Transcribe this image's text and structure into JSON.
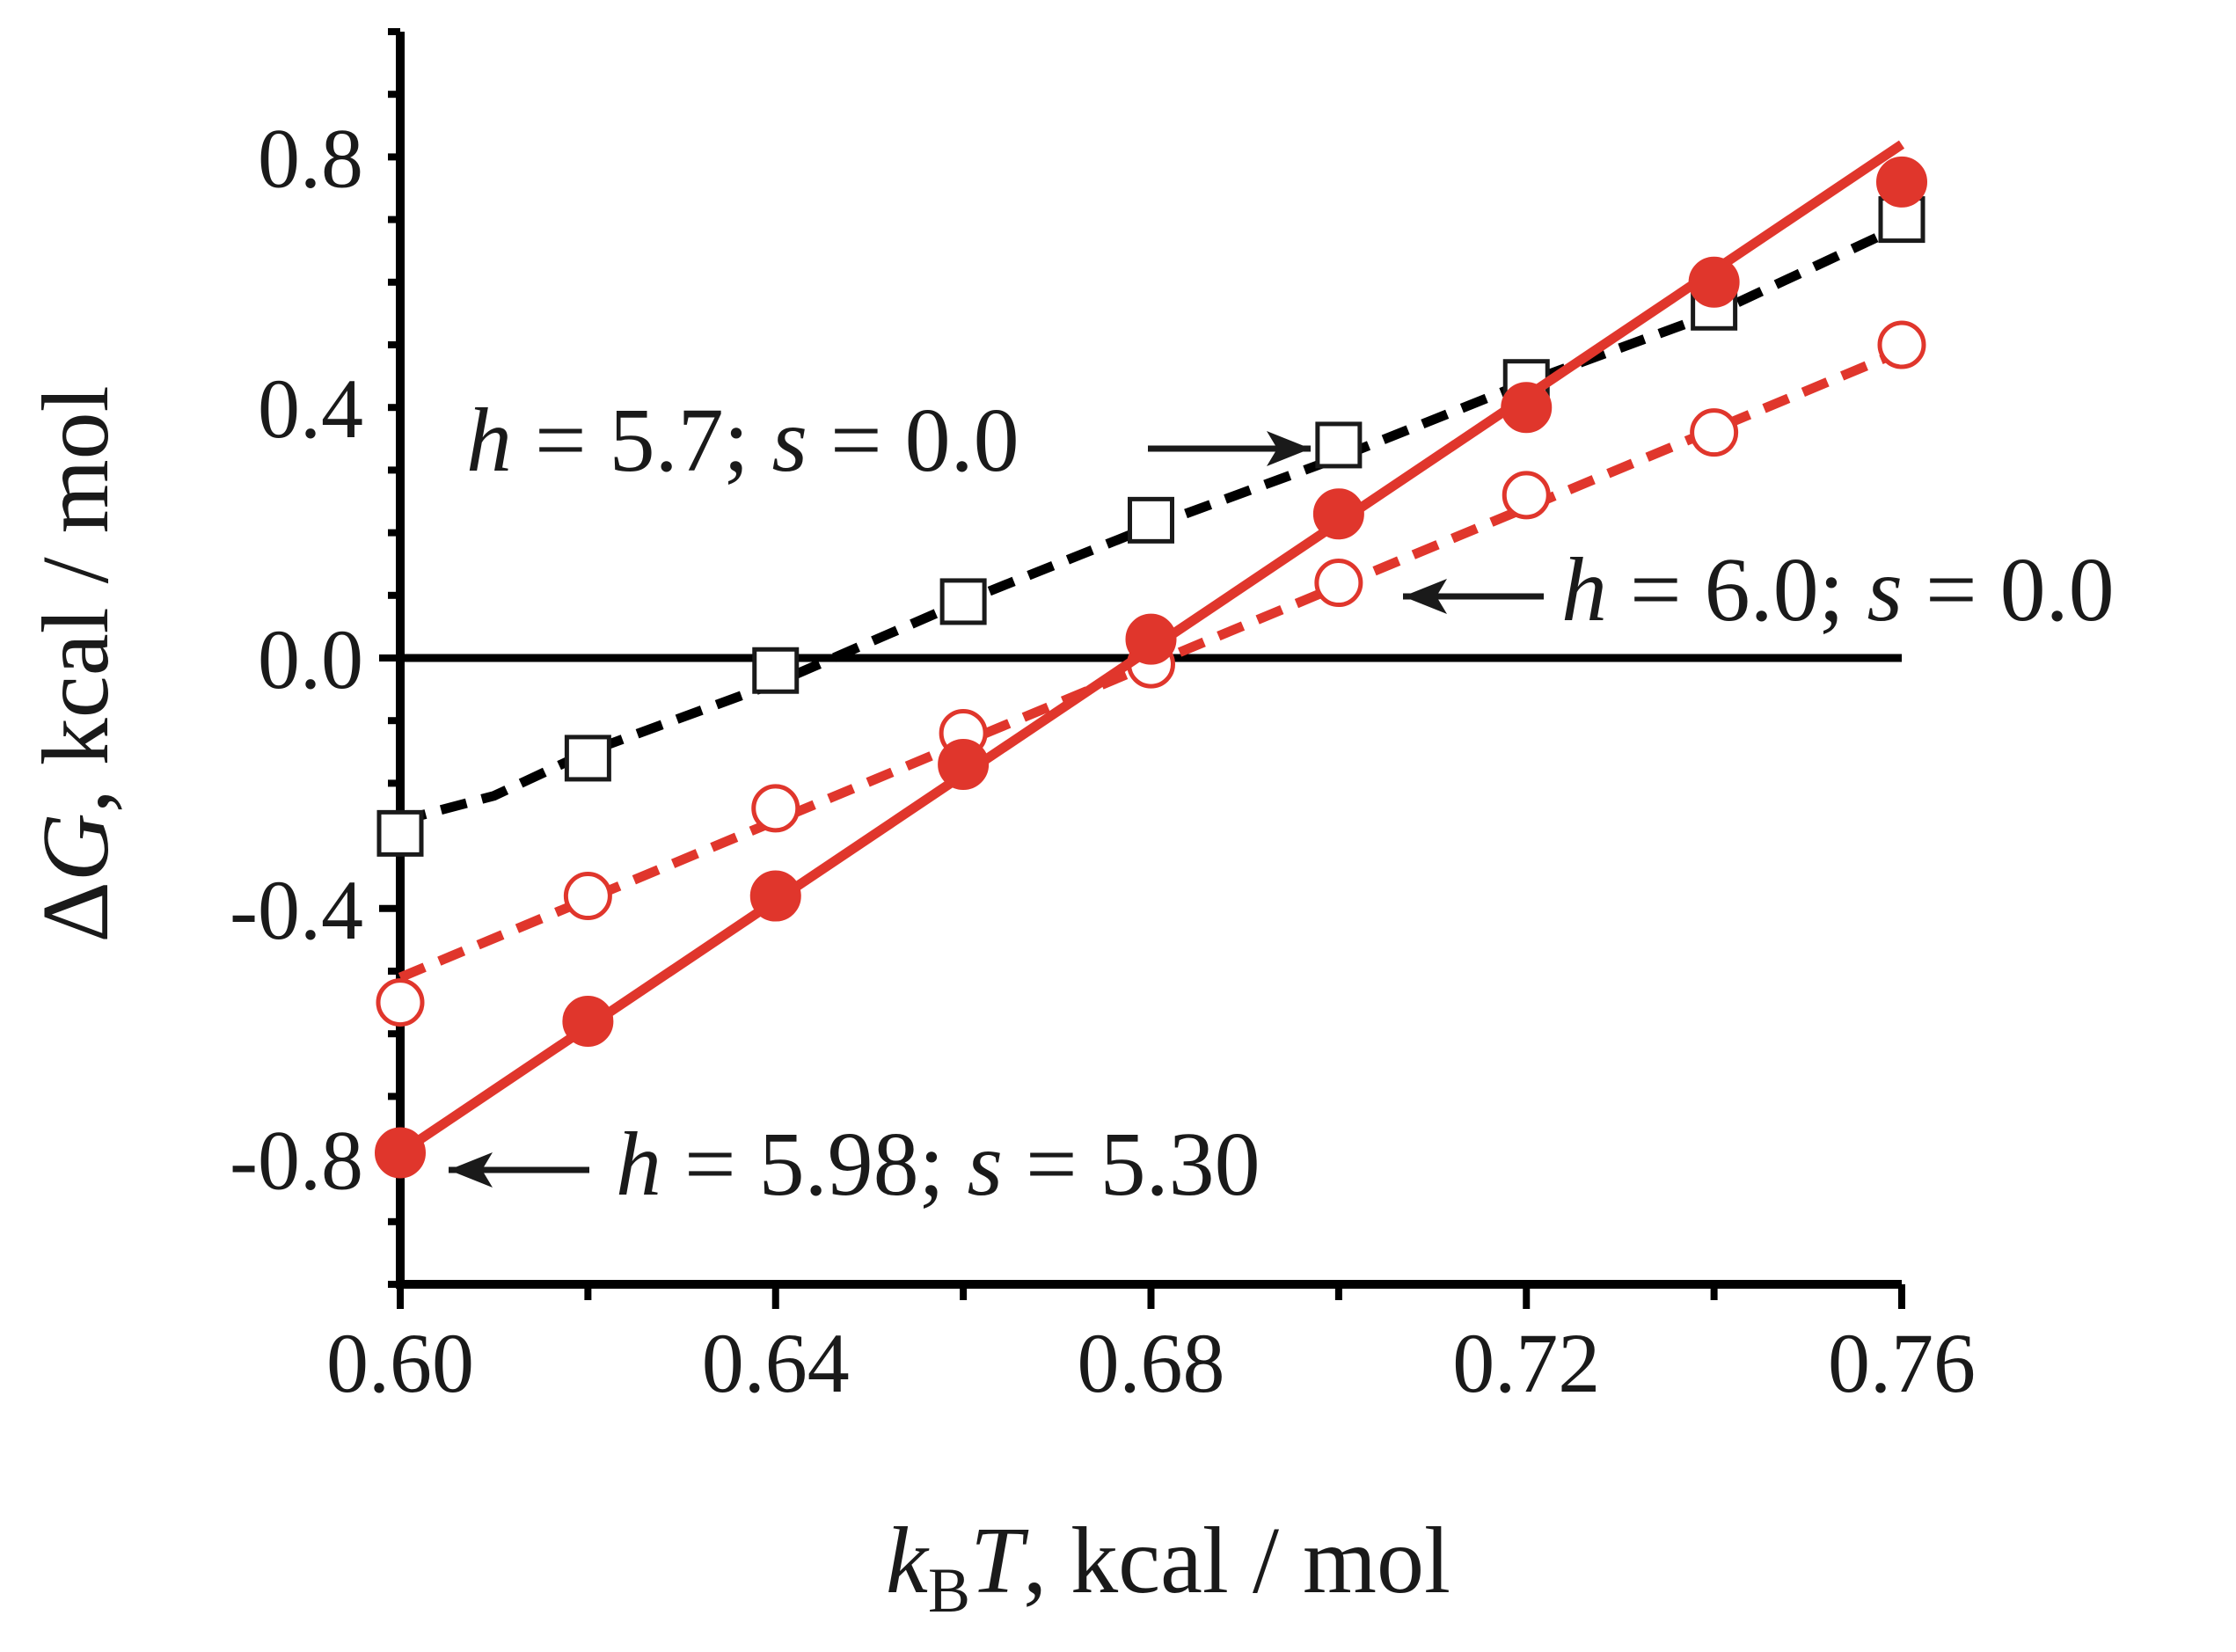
{
  "chart_data": {
    "type": "line",
    "xlabel": "k_B T, kcal / mol",
    "ylabel": "ΔG, kcal / mol",
    "xlim": [
      0.6,
      0.76
    ],
    "ylim": [
      -1.0,
      1.0
    ],
    "x_ticks": [
      "0.60",
      "0.64",
      "0.68",
      "0.72",
      "0.76"
    ],
    "y_ticks": [
      "-0.8",
      "-0.4",
      "0.0",
      "0.4",
      "0.8"
    ],
    "zero_line": true,
    "grid": false,
    "series": [
      {
        "marker": "open-square",
        "color": "#000000",
        "line_style": "dashed",
        "points": [
          {
            "x": 0.6,
            "y": -0.28
          },
          {
            "x": 0.62,
            "y": -0.16
          },
          {
            "x": 0.64,
            "y": -0.02
          },
          {
            "x": 0.66,
            "y": 0.09
          },
          {
            "x": 0.68,
            "y": 0.22
          },
          {
            "x": 0.7,
            "y": 0.34
          },
          {
            "x": 0.72,
            "y": 0.44
          },
          {
            "x": 0.74,
            "y": 0.56
          },
          {
            "x": 0.76,
            "y": 0.7
          }
        ],
        "fit": [
          {
            "x": 0.6,
            "y": -0.26
          },
          {
            "x": 0.61,
            "y": -0.22
          },
          {
            "x": 0.62,
            "y": -0.15
          },
          {
            "x": 0.64,
            "y": -0.04
          },
          {
            "x": 0.66,
            "y": 0.09
          },
          {
            "x": 0.68,
            "y": 0.21
          },
          {
            "x": 0.7,
            "y": 0.32
          },
          {
            "x": 0.72,
            "y": 0.44
          },
          {
            "x": 0.74,
            "y": 0.55
          },
          {
            "x": 0.76,
            "y": 0.69
          }
        ]
      },
      {
        "marker": "open-circle",
        "color": "#e0362c",
        "line_style": "dashed",
        "points": [
          {
            "x": 0.6,
            "y": -0.55
          },
          {
            "x": 0.62,
            "y": -0.38
          },
          {
            "x": 0.64,
            "y": -0.24
          },
          {
            "x": 0.66,
            "y": -0.12
          },
          {
            "x": 0.68,
            "y": -0.01
          },
          {
            "x": 0.7,
            "y": 0.12
          },
          {
            "x": 0.72,
            "y": 0.26
          },
          {
            "x": 0.74,
            "y": 0.36
          },
          {
            "x": 0.76,
            "y": 0.5
          }
        ],
        "fit": [
          {
            "x": 0.6,
            "y": -0.51
          },
          {
            "x": 0.76,
            "y": 0.49
          }
        ]
      },
      {
        "marker": "filled-circle",
        "color": "#e0362c",
        "line_style": "solid",
        "points": [
          {
            "x": 0.6,
            "y": -0.79
          },
          {
            "x": 0.62,
            "y": -0.58
          },
          {
            "x": 0.64,
            "y": -0.38
          },
          {
            "x": 0.66,
            "y": -0.17
          },
          {
            "x": 0.68,
            "y": 0.03
          },
          {
            "x": 0.7,
            "y": 0.23
          },
          {
            "x": 0.72,
            "y": 0.4
          },
          {
            "x": 0.74,
            "y": 0.6
          },
          {
            "x": 0.76,
            "y": 0.76
          }
        ],
        "fit": [
          {
            "x": 0.6,
            "y": -0.79
          },
          {
            "x": 0.76,
            "y": 0.82
          }
        ]
      }
    ],
    "annotations": [
      {
        "text_h": "h",
        "text_rest": " = 5.7; ",
        "text_s": "s",
        "text_end": " = 0.0",
        "arrow": "right",
        "points_to_series": 0
      },
      {
        "text_h": "h",
        "text_rest": " = 6.0; ",
        "text_s": "s",
        "text_end": " = 0.0",
        "arrow": "left",
        "points_to_series": 1
      },
      {
        "text_h": "h",
        "text_rest": " = 5.98; ",
        "text_s": "s",
        "text_end": " = 5.30",
        "arrow": "left",
        "points_to_series": 2
      }
    ]
  }
}
